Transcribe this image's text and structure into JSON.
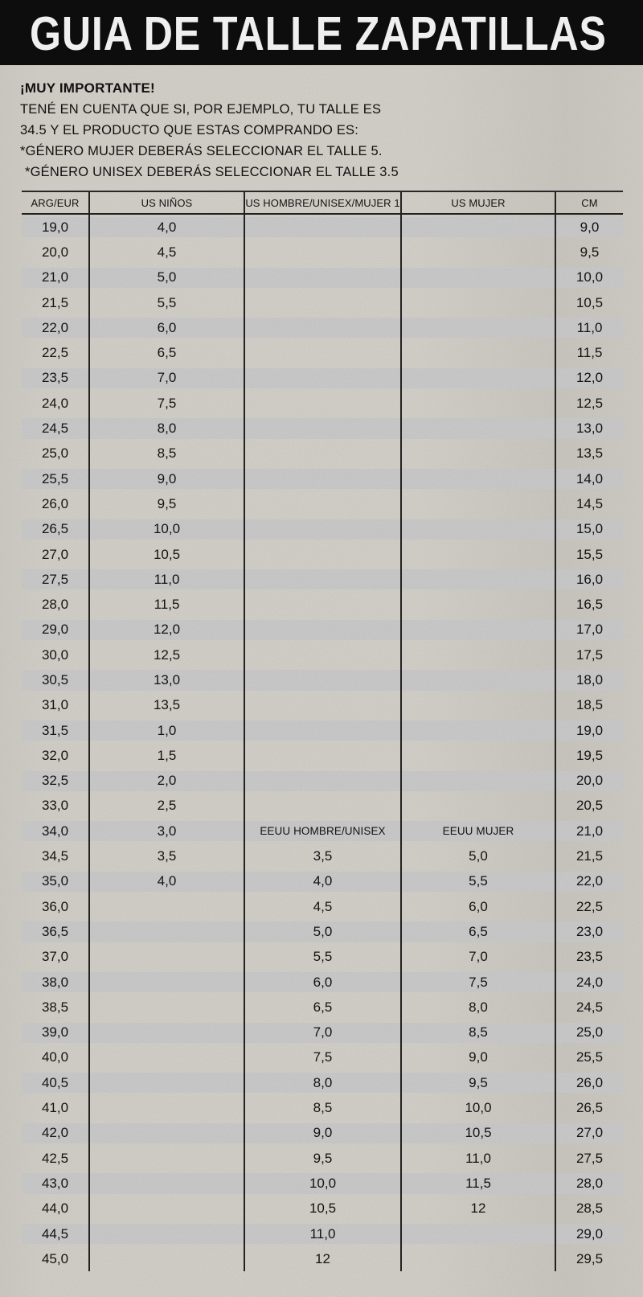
{
  "title": "GUIA DE TALLE ZAPATILLAS",
  "note": {
    "heading": "¡MUY IMPORTANTE!",
    "lines": [
      "TENÉ EN CUENTA QUE SI, POR EJEMPLO, TU TALLE ES",
      "34.5 Y EL PRODUCTO QUE ESTAS COMPRANDO ES:",
      "*GÉNERO MUJER DEBERÁS SELECCIONAR EL TALLE 5.",
      "*GÉNERO UNISEX DEBERÁS SELECCIONAR EL TALLE 3.5"
    ]
  },
  "table": {
    "headers": [
      "ARG/EUR",
      "US NIÑOS",
      "US HOMBRE/UNISEX/MUJER 1",
      "US MUJER",
      "CM"
    ],
    "subheaders": [
      "EEUU HOMBRE/UNISEX",
      "EEUU MUJER"
    ],
    "rows": [
      [
        "19,0",
        "4,0",
        "",
        "",
        "9,0"
      ],
      [
        "20,0",
        "4,5",
        "",
        "",
        "9,5"
      ],
      [
        "21,0",
        "5,0",
        "",
        "",
        "10,0"
      ],
      [
        "21,5",
        "5,5",
        "",
        "",
        "10,5"
      ],
      [
        "22,0",
        "6,0",
        "",
        "",
        "11,0"
      ],
      [
        "22,5",
        "6,5",
        "",
        "",
        "11,5"
      ],
      [
        "23,5",
        "7,0",
        "",
        "",
        "12,0"
      ],
      [
        "24,0",
        "7,5",
        "",
        "",
        "12,5"
      ],
      [
        "24,5",
        "8,0",
        "",
        "",
        "13,0"
      ],
      [
        "25,0",
        "8,5",
        "",
        "",
        "13,5"
      ],
      [
        "25,5",
        "9,0",
        "",
        "",
        "14,0"
      ],
      [
        "26,0",
        "9,5",
        "",
        "",
        "14,5"
      ],
      [
        "26,5",
        "10,0",
        "",
        "",
        "15,0"
      ],
      [
        "27,0",
        "10,5",
        "",
        "",
        "15,5"
      ],
      [
        "27,5",
        "11,0",
        "",
        "",
        "16,0"
      ],
      [
        "28,0",
        "11,5",
        "",
        "",
        "16,5"
      ],
      [
        "29,0",
        "12,0",
        "",
        "",
        "17,0"
      ],
      [
        "30,0",
        "12,5",
        "",
        "",
        "17,5"
      ],
      [
        "30,5",
        "13,0",
        "",
        "",
        "18,0"
      ],
      [
        "31,0",
        "13,5",
        "",
        "",
        "18,5"
      ],
      [
        "31,5",
        "1,0",
        "",
        "",
        "19,0"
      ],
      [
        "32,0",
        "1,5",
        "",
        "",
        "19,5"
      ],
      [
        "32,5",
        "2,0",
        "",
        "",
        "20,0"
      ],
      [
        "33,0",
        "2,5",
        "",
        "",
        "20,5"
      ],
      [
        "34,0",
        "3,0",
        "EEUU HOMBRE/UNISEX",
        "EEUU MUJER",
        "21,0"
      ],
      [
        "34,5",
        "3,5",
        "3,5",
        "5,0",
        "21,5"
      ],
      [
        "35,0",
        "4,0",
        "4,0",
        "5,5",
        "22,0"
      ],
      [
        "36,0",
        "",
        "4,5",
        "6,0",
        "22,5"
      ],
      [
        "36,5",
        "",
        "5,0",
        "6,5",
        "23,0"
      ],
      [
        "37,0",
        "",
        "5,5",
        "7,0",
        "23,5"
      ],
      [
        "38,0",
        "",
        "6,0",
        "7,5",
        "24,0"
      ],
      [
        "38,5",
        "",
        "6,5",
        "8,0",
        "24,5"
      ],
      [
        "39,0",
        "",
        "7,0",
        "8,5",
        "25,0"
      ],
      [
        "40,0",
        "",
        "7,5",
        "9,0",
        "25,5"
      ],
      [
        "40,5",
        "",
        "8,0",
        "9,5",
        "26,0"
      ],
      [
        "41,0",
        "",
        "8,5",
        "10,0",
        "26,5"
      ],
      [
        "42,0",
        "",
        "9,0",
        "10,5",
        "27,0"
      ],
      [
        "42,5",
        "",
        "9,5",
        "11,0",
        "27,5"
      ],
      [
        "43,0",
        "",
        "10,0",
        "11,5",
        "28,0"
      ],
      [
        "44,0",
        "",
        "10,5",
        "12",
        "28,5"
      ],
      [
        "44,5",
        "",
        "11,0",
        "",
        "29,0"
      ],
      [
        "45,0",
        "",
        "12",
        "",
        "29,5"
      ]
    ]
  },
  "colors": {
    "top_bar": "#0d0d0d",
    "title_text": "#ffffff",
    "row_shade": "#d2d2d2",
    "paper": "#f2f1ee",
    "line": "#242424"
  }
}
